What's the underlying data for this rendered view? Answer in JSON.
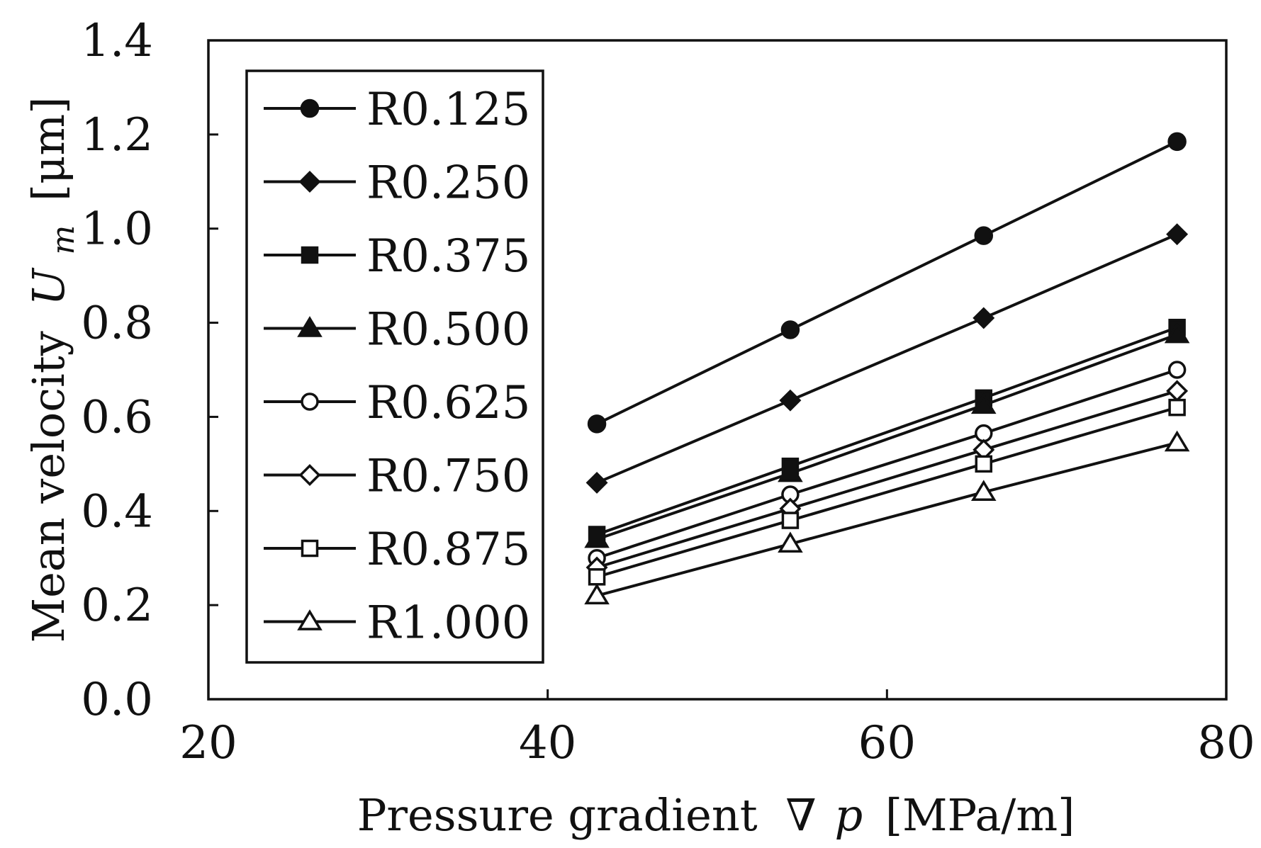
{
  "chart_data": {
    "type": "line",
    "title": "",
    "xlabel": {
      "prefix": "Pressure gradient",
      "symbol_nabla": "∇",
      "symbol_p": "p",
      "unit": "[MPa/m]"
    },
    "ylabel": {
      "prefix": "Mean velocity",
      "symbol": "U",
      "subscript": "m",
      "unit": "[μm]"
    },
    "xlim": [
      20,
      80
    ],
    "ylim": [
      0.0,
      1.4
    ],
    "xticks": [
      "20",
      "40",
      "60",
      "80"
    ],
    "yticks": [
      "0.0",
      "0.2",
      "0.4",
      "0.6",
      "0.8",
      "1.0",
      "1.2",
      "1.4"
    ],
    "x": [
      42.9,
      54.3,
      65.7,
      77.1
    ],
    "legend_position": "top-left",
    "grid": false,
    "series": [
      {
        "name": "R0.125",
        "marker": "filled-circle",
        "values": [
          0.585,
          0.785,
          0.985,
          1.185
        ]
      },
      {
        "name": "R0.250",
        "marker": "filled-diamond",
        "values": [
          0.46,
          0.635,
          0.81,
          0.988
        ]
      },
      {
        "name": "R0.375",
        "marker": "filled-square",
        "values": [
          0.35,
          0.495,
          0.64,
          0.79
        ]
      },
      {
        "name": "R0.500",
        "marker": "filled-triangle",
        "values": [
          0.34,
          0.48,
          0.625,
          0.775
        ]
      },
      {
        "name": "R0.625",
        "marker": "open-circle",
        "values": [
          0.3,
          0.435,
          0.565,
          0.7
        ]
      },
      {
        "name": "R0.750",
        "marker": "open-diamond",
        "values": [
          0.28,
          0.405,
          0.53,
          0.655
        ]
      },
      {
        "name": "R0.875",
        "marker": "open-square",
        "values": [
          0.26,
          0.38,
          0.5,
          0.62
        ]
      },
      {
        "name": "R1.000",
        "marker": "open-triangle",
        "values": [
          0.22,
          0.33,
          0.44,
          0.545
        ]
      }
    ]
  }
}
